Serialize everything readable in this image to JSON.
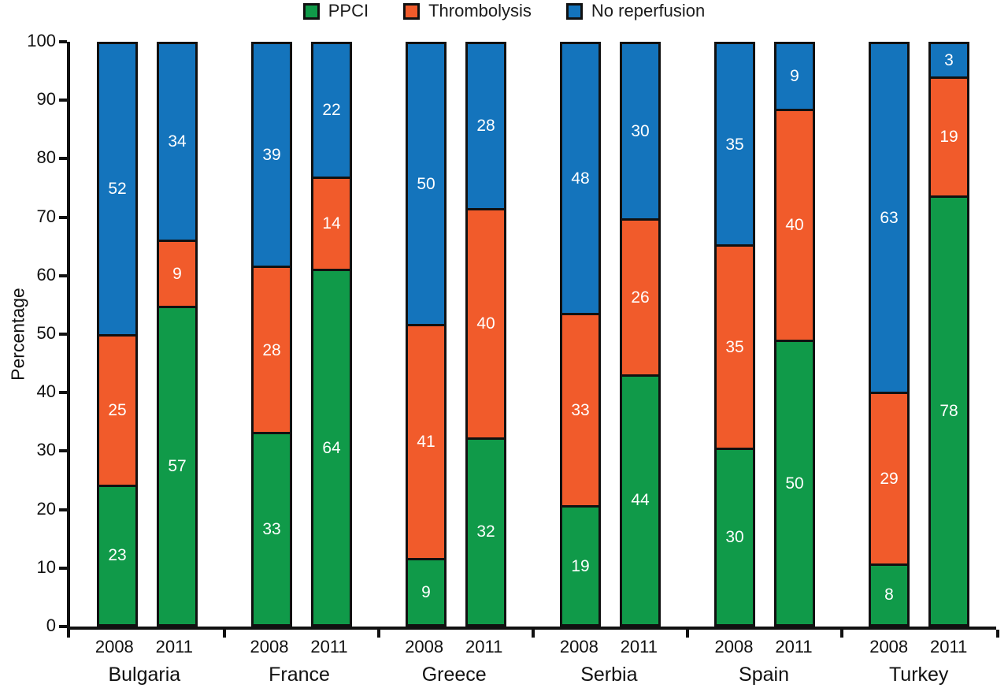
{
  "chart_data": {
    "type": "bar",
    "stacked": true,
    "title": "",
    "xlabel": "",
    "ylabel": "Percentage",
    "ylim": [
      0,
      100
    ],
    "yticks": [
      0,
      10,
      20,
      30,
      40,
      50,
      60,
      70,
      80,
      90,
      100
    ],
    "grid": false,
    "legend_position": "top-center",
    "legend": {
      "items": [
        {
          "key": "ppci",
          "label": "PPCI",
          "color": "#109a49"
        },
        {
          "key": "thrombolysis",
          "label": "Thrombolysis",
          "color": "#f15b2b"
        },
        {
          "key": "no_reperfusion",
          "label": "No reperfusion",
          "color": "#1474bc"
        }
      ]
    },
    "stack_order_top_to_bottom": [
      "no_reperfusion",
      "thrombolysis",
      "ppci"
    ],
    "categories": [
      "Bulgaria",
      "France",
      "Greece",
      "Serbia",
      "Spain",
      "Turkey"
    ],
    "bar_years": [
      "2008",
      "2011"
    ],
    "groups": [
      {
        "country": "Bulgaria",
        "bars": [
          {
            "year": "2008",
            "ppci": 23,
            "thrombolysis": 25,
            "no_reperfusion": 52
          },
          {
            "year": "2011",
            "ppci": 57,
            "thrombolysis": 9,
            "no_reperfusion": 34
          }
        ]
      },
      {
        "country": "France",
        "bars": [
          {
            "year": "2008",
            "ppci": 33,
            "thrombolysis": 28,
            "no_reperfusion": 39
          },
          {
            "year": "2011",
            "ppci": 64,
            "thrombolysis": 14,
            "no_reperfusion": 22
          }
        ]
      },
      {
        "country": "Greece",
        "bars": [
          {
            "year": "2008",
            "ppci": 9,
            "thrombolysis": 41,
            "no_reperfusion": 50
          },
          {
            "year": "2011",
            "ppci": 32,
            "thrombolysis": 40,
            "no_reperfusion": 28
          }
        ]
      },
      {
        "country": "Serbia",
        "bars": [
          {
            "year": "2008",
            "ppci": 19,
            "thrombolysis": 33,
            "no_reperfusion": 48
          },
          {
            "year": "2011",
            "ppci": 44,
            "thrombolysis": 26,
            "no_reperfusion": 30
          }
        ]
      },
      {
        "country": "Spain",
        "bars": [
          {
            "year": "2008",
            "ppci": 30,
            "thrombolysis": 35,
            "no_reperfusion": 35
          },
          {
            "year": "2011",
            "ppci": 50,
            "thrombolysis": 40,
            "no_reperfusion": 9
          }
        ]
      },
      {
        "country": "Turkey",
        "bars": [
          {
            "year": "2008",
            "ppci": 8,
            "thrombolysis": 29,
            "no_reperfusion": 63
          },
          {
            "year": "2011",
            "ppci": 78,
            "thrombolysis": 19,
            "no_reperfusion": 3
          }
        ]
      }
    ],
    "axis_color": "#111111",
    "value_label_color": "#ffffff"
  }
}
